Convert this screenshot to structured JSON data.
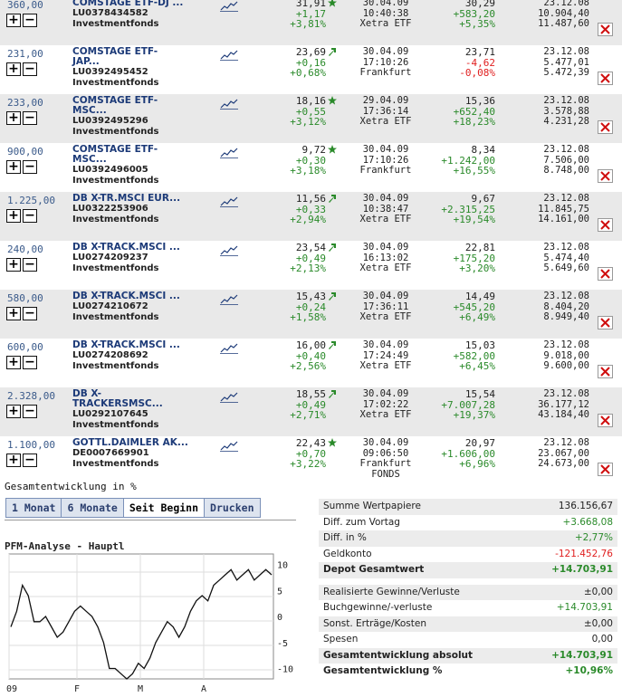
{
  "holdings": [
    {
      "qty": "360,00",
      "name1": "COMSTAGE ETF-DJ ...",
      "name2": "",
      "isin": "LU0378434582",
      "type": "Investmentfonds",
      "price": "31,91",
      "chg": "+1,17",
      "chgpct": "+3,81%",
      "arrow": "star",
      "date": "30.04.09",
      "time": "10:40:38",
      "exch": "Xetra ETF",
      "exch2": "",
      "buy": "30,29",
      "gain": "+583,20",
      "gainpct": "+5,35%",
      "gsign": "pos",
      "vdate": "23.12.08",
      "v1": "10.904,40",
      "v2": "11.487,60",
      "shade": true
    },
    {
      "qty": "231,00",
      "name1": "COMSTAGE ETF-",
      "name2": "JAP...",
      "isin": "LU0392495452",
      "type": "Investmentfonds",
      "price": "23,69",
      "chg": "+0,16",
      "chgpct": "+0,68%",
      "arrow": "up",
      "date": "30.04.09",
      "time": "17:10:26",
      "exch": "Frankfurt",
      "exch2": "",
      "buy": "23,71",
      "gain": "-4,62",
      "gainpct": "-0,08%",
      "gsign": "neg",
      "vdate": "23.12.08",
      "v1": "5.477,01",
      "v2": "5.472,39",
      "shade": false
    },
    {
      "qty": "233,00",
      "name1": "COMSTAGE ETF-",
      "name2": "MSC...",
      "isin": "LU0392495296",
      "type": "Investmentfonds",
      "price": "18,16",
      "chg": "+0,55",
      "chgpct": "+3,12%",
      "arrow": "star",
      "date": "29.04.09",
      "time": "17:36:14",
      "exch": "Xetra ETF",
      "exch2": "",
      "buy": "15,36",
      "gain": "+652,40",
      "gainpct": "+18,23%",
      "gsign": "pos",
      "vdate": "23.12.08",
      "v1": "3.578,88",
      "v2": "4.231,28",
      "shade": true
    },
    {
      "qty": "900,00",
      "name1": "COMSTAGE ETF-",
      "name2": "MSC...",
      "isin": "LU0392496005",
      "type": "Investmentfonds",
      "price": "9,72",
      "chg": "+0,30",
      "chgpct": "+3,18%",
      "arrow": "star",
      "date": "30.04.09",
      "time": "17:10:26",
      "exch": "Frankfurt",
      "exch2": "",
      "buy": "8,34",
      "gain": "+1.242,00",
      "gainpct": "+16,55%",
      "gsign": "pos",
      "vdate": "23.12.08",
      "v1": "7.506,00",
      "v2": "8.748,00",
      "shade": false
    },
    {
      "qty": "1.225,00",
      "name1": "DB X-TR.MSCI EUR...",
      "name2": "",
      "isin": "LU0322253906",
      "type": "Investmentfonds",
      "price": "11,56",
      "chg": "+0,33",
      "chgpct": "+2,94%",
      "arrow": "up",
      "date": "30.04.09",
      "time": "10:38:47",
      "exch": "Xetra ETF",
      "exch2": "",
      "buy": "9,67",
      "gain": "+2.315,25",
      "gainpct": "+19,54%",
      "gsign": "pos",
      "vdate": "23.12.08",
      "v1": "11.845,75",
      "v2": "14.161,00",
      "shade": true
    },
    {
      "qty": "240,00",
      "name1": "DB X-TRACK.MSCI ...",
      "name2": "",
      "isin": "LU0274209237",
      "type": "Investmentfonds",
      "price": "23,54",
      "chg": "+0,49",
      "chgpct": "+2,13%",
      "arrow": "up",
      "date": "30.04.09",
      "time": "16:13:02",
      "exch": "Xetra ETF",
      "exch2": "",
      "buy": "22,81",
      "gain": "+175,20",
      "gainpct": "+3,20%",
      "gsign": "pos",
      "vdate": "23.12.08",
      "v1": "5.474,40",
      "v2": "5.649,60",
      "shade": false
    },
    {
      "qty": "580,00",
      "name1": "DB X-TRACK.MSCI ...",
      "name2": "",
      "isin": "LU0274210672",
      "type": "Investmentfonds",
      "price": "15,43",
      "chg": "+0,24",
      "chgpct": "+1,58%",
      "arrow": "up",
      "date": "30.04.09",
      "time": "17:36:11",
      "exch": "Xetra ETF",
      "exch2": "",
      "buy": "14,49",
      "gain": "+545,20",
      "gainpct": "+6,49%",
      "gsign": "pos",
      "vdate": "23.12.08",
      "v1": "8.404,20",
      "v2": "8.949,40",
      "shade": true
    },
    {
      "qty": "600,00",
      "name1": "DB X-TRACK.MSCI ...",
      "name2": "",
      "isin": "LU0274208692",
      "type": "Investmentfonds",
      "price": "16,00",
      "chg": "+0,40",
      "chgpct": "+2,56%",
      "arrow": "up",
      "date": "30.04.09",
      "time": "17:24:49",
      "exch": "Xetra ETF",
      "exch2": "",
      "buy": "15,03",
      "gain": "+582,00",
      "gainpct": "+6,45%",
      "gsign": "pos",
      "vdate": "23.12.08",
      "v1": "9.018,00",
      "v2": "9.600,00",
      "shade": false
    },
    {
      "qty": "2.328,00",
      "name1": "DB X-",
      "name2": "TRACKERSMSC...",
      "isin": "LU0292107645",
      "type": "Investmentfonds",
      "price": "18,55",
      "chg": "+0,49",
      "chgpct": "+2,71%",
      "arrow": "up",
      "date": "30.04.09",
      "time": "17:02:22",
      "exch": "Xetra ETF",
      "exch2": "",
      "buy": "15,54",
      "gain": "+7.007,28",
      "gainpct": "+19,37%",
      "gsign": "pos",
      "vdate": "23.12.08",
      "v1": "36.177,12",
      "v2": "43.184,40",
      "shade": true
    },
    {
      "qty": "1.100,00",
      "name1": "GOTTL.DAIMLER AK...",
      "name2": "",
      "isin": "DE0007669901",
      "type": "Investmentfonds",
      "price": "22,43",
      "chg": "+0,70",
      "chgpct": "+3,22%",
      "arrow": "star",
      "date": "30.04.09",
      "time": "09:06:50",
      "exch": "Frankfurt",
      "exch2": "FONDS",
      "buy": "20,97",
      "gain": "+1.606,00",
      "gainpct": "+6,96%",
      "gsign": "pos",
      "vdate": "23.12.08",
      "v1": "23.067,00",
      "v2": "24.673,00",
      "shade": false
    }
  ],
  "section_title": "Gesamtentwicklung in %",
  "tabs": [
    "1 Monat",
    "6 Monate",
    "Seit Beginn",
    "Drucken"
  ],
  "chart_data": {
    "type": "line",
    "title": "PFM-Analyse - Hauptl",
    "xtick_labels": [
      "09",
      "F",
      "M",
      "A"
    ],
    "ytick_labels": [
      "10",
      "5",
      "0",
      "-5",
      "-10"
    ],
    "ylim": [
      -12,
      12
    ],
    "grid": true,
    "series": [
      {
        "values": [
          -2,
          1,
          6,
          4,
          -1,
          -1,
          0,
          -2,
          -4,
          -3,
          -1,
          1,
          2,
          1,
          0,
          -2,
          -5,
          -10,
          -10,
          -11,
          -12,
          -11,
          -9,
          -10,
          -8,
          -5,
          -3,
          -1,
          -2,
          -4,
          -2,
          1,
          3,
          4,
          3,
          6,
          7,
          8,
          9,
          7,
          8,
          9,
          7,
          8,
          9,
          8
        ]
      }
    ]
  },
  "summary": [
    {
      "label": "Summe Wertpapiere",
      "value": "136.156,67",
      "color": "#222",
      "bold": false
    },
    {
      "label": "Diff. zum Vortag",
      "value": "+3.668,08",
      "color": "#2a8a2a",
      "bold": false
    },
    {
      "label": "Diff. in %",
      "value": "+2,77%",
      "color": "#2a8a2a",
      "bold": false
    },
    {
      "label": "Geldkonto",
      "value": "-121.452,76",
      "color": "#e02020",
      "bold": false
    },
    {
      "label": "Depot Gesamtwert",
      "value": "+14.703,91",
      "color": "#2a8a2a",
      "bold": true
    },
    {
      "label": "",
      "value": "",
      "color": "#222",
      "bold": false
    },
    {
      "label": "Realisierte Gewinne/Verluste",
      "value": "±0,00",
      "color": "#222",
      "bold": false
    },
    {
      "label": "Buchgewinne/-verluste",
      "value": "+14.703,91",
      "color": "#2a8a2a",
      "bold": false
    },
    {
      "label": "Sonst. Erträge/Kosten",
      "value": "±0,00",
      "color": "#222",
      "bold": false
    },
    {
      "label": "Spesen",
      "value": "0,00",
      "color": "#222",
      "bold": false
    },
    {
      "label": "Gesamtentwicklung absolut",
      "value": "+14.703,91",
      "color": "#2a8a2a",
      "bold": true
    },
    {
      "label": "Gesamtentwicklung %",
      "value": "+10,96%",
      "color": "#2a8a2a",
      "bold": true
    }
  ],
  "colors": {
    "green": "#2a8a2a",
    "red": "#e02020",
    "link": "#1c3a78"
  },
  "icons": [
    "plus-icon",
    "minus-icon",
    "trend-chart-icon",
    "star-icon",
    "up-arrow-icon",
    "delete-icon"
  ]
}
